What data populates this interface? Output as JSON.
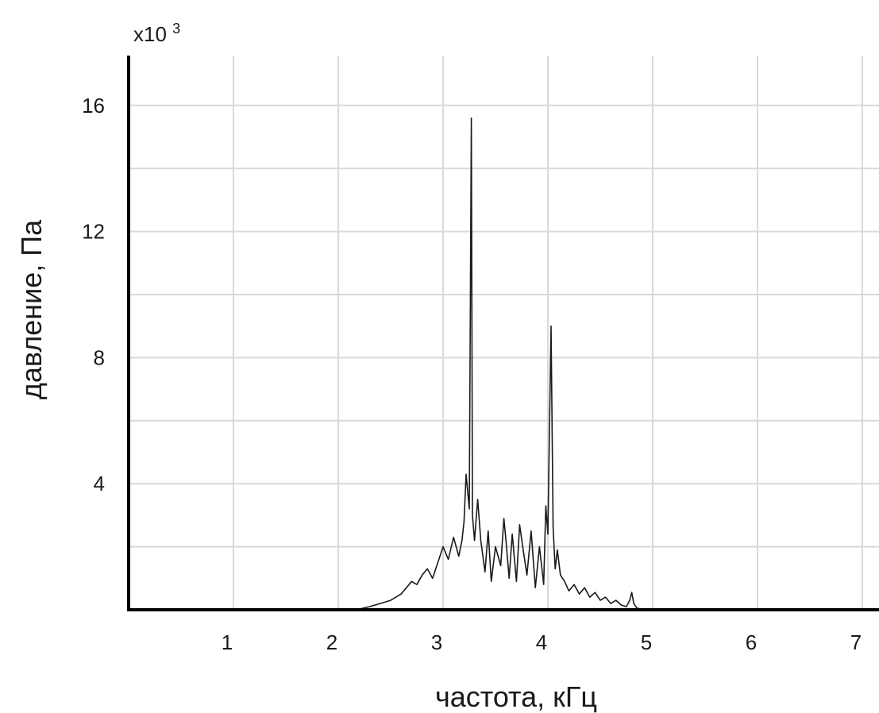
{
  "chart_data": {
    "type": "line",
    "title": "",
    "xlabel": "частота, кГц",
    "ylabel": "давление, Па",
    "y_multiplier": {
      "base": "x10",
      "exponent": "3"
    },
    "xlim": [
      0,
      7
    ],
    "ylim": [
      0,
      17.5
    ],
    "x_ticks": [
      1,
      2,
      3,
      4,
      5,
      6,
      7
    ],
    "x_tick_labels": [
      "1",
      "2",
      "3",
      "4",
      "5",
      "6",
      "7"
    ],
    "y_ticks": [
      4,
      8,
      12,
      16
    ],
    "y_tick_labels": [
      "4",
      "8",
      "12",
      "16"
    ],
    "grid": true,
    "colors": {
      "line": "#1a1a1a",
      "grid": "#d9d9d9",
      "axis": "#000000"
    },
    "series": [
      {
        "x": [
          0,
          2.0,
          2.2,
          2.3,
          2.4,
          2.5,
          2.55,
          2.6,
          2.65,
          2.7,
          2.75,
          2.8,
          2.85,
          2.9,
          2.95,
          3.0,
          3.05,
          3.1,
          3.15,
          3.18,
          3.2,
          3.22,
          3.25,
          3.27,
          3.28,
          3.3,
          3.33,
          3.36,
          3.4,
          3.43,
          3.46,
          3.5,
          3.55,
          3.58,
          3.6,
          3.63,
          3.66,
          3.7,
          3.73,
          3.76,
          3.8,
          3.84,
          3.88,
          3.92,
          3.96,
          3.98,
          4.0,
          4.03,
          4.05,
          4.07,
          4.09,
          4.12,
          4.16,
          4.2,
          4.25,
          4.3,
          4.35,
          4.4,
          4.45,
          4.5,
          4.55,
          4.6,
          4.65,
          4.7,
          4.75,
          4.78,
          4.8,
          4.82,
          4.85,
          4.9,
          5.0,
          7.0
        ],
        "y": [
          0,
          0,
          0.02,
          0.1,
          0.2,
          0.3,
          0.4,
          0.5,
          0.7,
          0.9,
          0.8,
          1.1,
          1.3,
          1.0,
          1.5,
          2.0,
          1.6,
          2.3,
          1.7,
          2.2,
          2.8,
          4.3,
          3.2,
          15.6,
          3.0,
          2.2,
          3.5,
          2.2,
          1.2,
          2.5,
          0.9,
          2.0,
          1.4,
          2.9,
          2.2,
          1.0,
          2.4,
          0.9,
          2.7,
          2.0,
          1.1,
          2.5,
          0.7,
          2.0,
          0.8,
          3.3,
          2.4,
          9.0,
          2.6,
          1.3,
          1.9,
          1.1,
          0.9,
          0.6,
          0.8,
          0.5,
          0.7,
          0.4,
          0.55,
          0.3,
          0.4,
          0.2,
          0.3,
          0.15,
          0.1,
          0.3,
          0.55,
          0.2,
          0.05,
          0.02,
          0,
          0
        ]
      }
    ]
  }
}
